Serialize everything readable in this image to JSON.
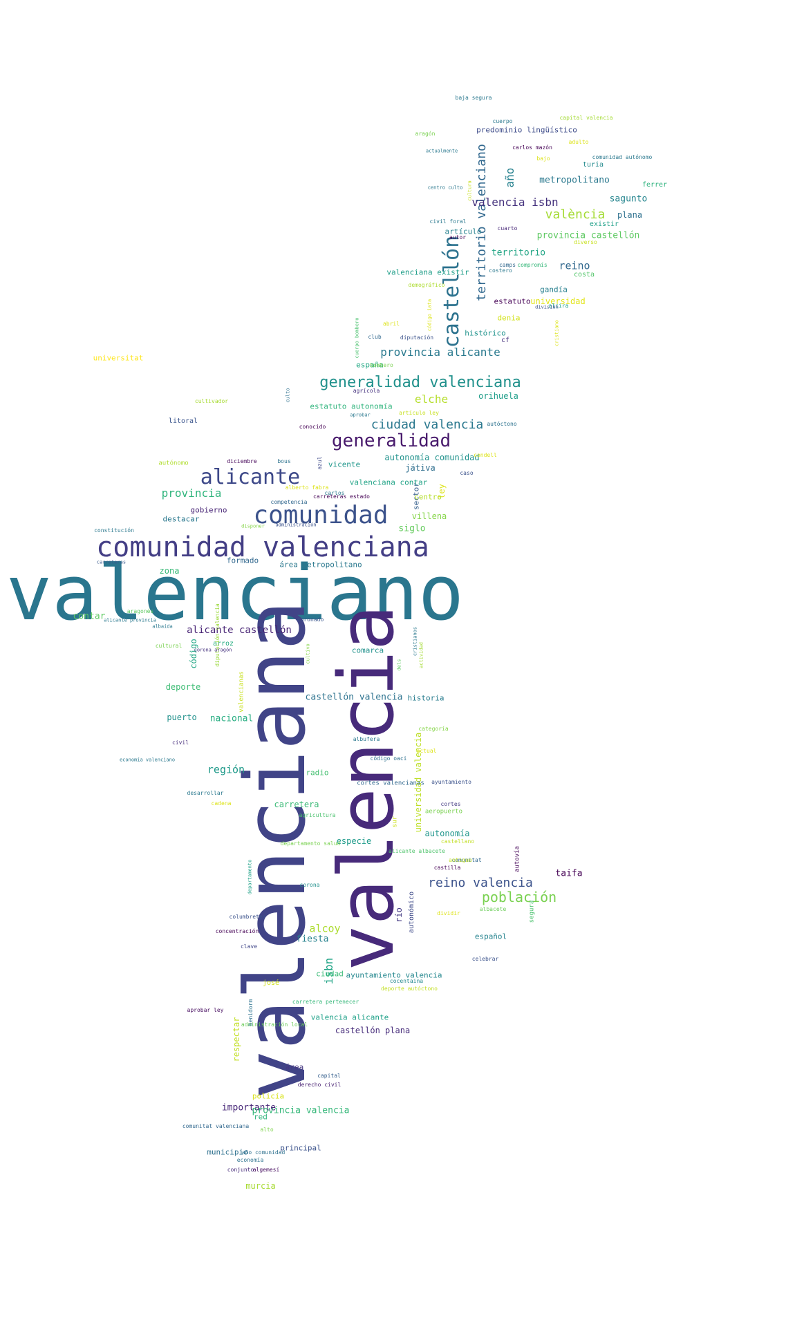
{
  "words": [
    {
      "text": "valenciano",
      "color": "#2a768e"
    },
    {
      "text": "valenciana",
      "color": "#414487"
    },
    {
      "text": "valencia",
      "color": "#472a7a"
    },
    {
      "text": "comunidad valenciana",
      "color": "#433e85"
    },
    {
      "text": "comunidad",
      "color": "#3b528b"
    },
    {
      "text": "generalidad",
      "color": "#481a6c"
    },
    {
      "text": "generalidad valenciana",
      "color": "#21918c"
    },
    {
      "text": "alicante",
      "color": "#3e4989"
    },
    {
      "text": "castellón",
      "color": "#2c728e"
    },
    {
      "text": "territorio valenciano",
      "color": "#31688e"
    },
    {
      "text": "población",
      "color": "#7ad151"
    },
    {
      "text": "reino valencia",
      "color": "#3b528b"
    },
    {
      "text": "ciudad valencia",
      "color": "#2a788e"
    },
    {
      "text": "provincia alicante",
      "color": "#29798e"
    },
    {
      "text": "valencia isbn",
      "color": "#46337e"
    },
    {
      "text": "valència",
      "color": "#a5db36"
    },
    {
      "text": "elche",
      "color": "#b5de2b"
    },
    {
      "text": "provincia",
      "color": "#2fb47c"
    },
    {
      "text": "alicante castellón",
      "color": "#482475"
    },
    {
      "text": "castellón valencia",
      "color": "#2c728e"
    },
    {
      "text": "región",
      "color": "#1f9a8a"
    },
    {
      "text": "alcoy",
      "color": "#addc30"
    },
    {
      "text": "isbn",
      "color": "#20a486"
    },
    {
      "text": "fiesta",
      "color": "#26828e"
    },
    {
      "text": "importante",
      "color": "#482878"
    },
    {
      "text": "año",
      "color": "#26818e"
    },
    {
      "text": "metropolitano",
      "color": "#2a788e"
    },
    {
      "text": "reino",
      "color": "#31688e"
    },
    {
      "text": "territorio",
      "color": "#21a585"
    },
    {
      "text": "universidad",
      "color": "#e2e418"
    },
    {
      "text": "provincia castellón",
      "color": "#5ec962"
    },
    {
      "text": "plana",
      "color": "#2d708e"
    },
    {
      "text": "sagunto",
      "color": "#25858e"
    },
    {
      "text": "orihuela",
      "color": "#1f9e89"
    },
    {
      "text": "villena",
      "color": "#86d549"
    },
    {
      "text": "siglo",
      "color": "#65cb5e"
    },
    {
      "text": "ley",
      "color": "#dde318"
    },
    {
      "text": "sector",
      "color": "#355f8d"
    },
    {
      "text": "destacar",
      "color": "#2a788e"
    },
    {
      "text": "gobierno",
      "color": "#482576"
    },
    {
      "text": "zona",
      "color": "#38b977"
    },
    {
      "text": "contar",
      "color": "#5ec962"
    },
    {
      "text": "código",
      "color": "#22a785"
    },
    {
      "text": "deporte",
      "color": "#3dbc74"
    },
    {
      "text": "puerto",
      "color": "#21918c"
    },
    {
      "text": "nacional",
      "color": "#27ad81"
    },
    {
      "text": "historia",
      "color": "#287c8e"
    },
    {
      "text": "comarca",
      "color": "#21918c"
    },
    {
      "text": "radio",
      "color": "#44bf70"
    },
    {
      "text": "carretera",
      "color": "#3aba76"
    },
    {
      "text": "especie",
      "color": "#1e9b8a"
    },
    {
      "text": "universidad valencia",
      "color": "#bddf26"
    },
    {
      "text": "autonomía",
      "color": "#1f958b"
    },
    {
      "text": "taifa",
      "color": "#440154"
    },
    {
      "text": "río",
      "color": "#443a83"
    },
    {
      "text": "autonómico",
      "color": "#3e4a89"
    },
    {
      "text": "ayuntamiento valencia",
      "color": "#24878e"
    },
    {
      "text": "valencia alicante",
      "color": "#1fa188"
    },
    {
      "text": "castellón plana",
      "color": "#472d7b"
    },
    {
      "text": "ciudad",
      "color": "#3aba76"
    },
    {
      "text": "respectar",
      "color": "#c2df23"
    },
    {
      "text": "área",
      "color": "#453781"
    },
    {
      "text": "policía",
      "color": "#d8e219"
    },
    {
      "text": "provincia valencia",
      "color": "#35b779"
    },
    {
      "text": "red",
      "color": "#2eb37c"
    },
    {
      "text": "principal",
      "color": "#3b528b"
    },
    {
      "text": "municipio",
      "color": "#2d708e"
    },
    {
      "text": "murcia",
      "color": "#a8db34"
    },
    {
      "text": "español",
      "color": "#25838e"
    },
    {
      "text": "españa",
      "color": "#22a884"
    },
    {
      "text": "estatuto autonomía",
      "color": "#2fb47c"
    },
    {
      "text": "predominio lingüístico",
      "color": "#3e4c8a"
    },
    {
      "text": "autonomía comunidad",
      "color": "#20928c"
    },
    {
      "text": "jativa_display",
      "color": "#2e6e8e"
    },
    {
      "text": "valenciana contar",
      "color": "#20a386"
    },
    {
      "text": "centro",
      "color": "#b5de2b"
    },
    {
      "text": "vicente",
      "color": "#1f968b"
    },
    {
      "text": "formado",
      "color": "#31688e"
    },
    {
      "text": "área metropolitano",
      "color": "#2a788e"
    },
    {
      "text": "denia",
      "color": "#d2e21b"
    },
    {
      "text": "gandía",
      "color": "#277f8e"
    },
    {
      "text": "estatuto",
      "color": "#440154"
    },
    {
      "text": "cf",
      "color": "#46327e"
    },
    {
      "text": "histórico",
      "color": "#20938c"
    },
    {
      "text": "valenciana existir",
      "color": "#1f9e89"
    },
    {
      "text": "costa",
      "color": "#52c569"
    },
    {
      "text": "artículo",
      "color": "#26818e"
    },
    {
      "text": "turia",
      "color": "#238a8d"
    },
    {
      "text": "ferrer",
      "color": "#2db27d"
    },
    {
      "text": "existir",
      "color": "#1fa088"
    },
    {
      "text": "universitat",
      "color": "#fde725"
    },
    {
      "text": "litoral",
      "color": "#3a548c"
    },
    {
      "text": "autónomo",
      "color": "#b0dd2f"
    },
    {
      "text": "autovía",
      "color": "#450559"
    },
    {
      "text": "segura",
      "color": "#4ac16d"
    },
    {
      "text": "arroz",
      "color": "#27ad81"
    },
    {
      "text": "josé",
      "color": "#d0e11c"
    },
    {
      "text": "sur",
      "color": "#cde11d"
    },
    {
      "text": "valencianas",
      "color": "#c8e020"
    },
    {
      "text": "diputación valencia",
      "color": "#9bd93c"
    },
    {
      "text": "aeropuerto",
      "color": "#7ad151"
    },
    {
      "text": "cortes valencianas",
      "color": "#31688e"
    },
    {
      "text": "código oaci",
      "color": "#2d708e"
    },
    {
      "text": "castellano",
      "color": "#c2df23"
    },
    {
      "text": "alicante albacete",
      "color": "#4ec36b"
    },
    {
      "text": "comunitat",
      "color": "#31688e"
    },
    {
      "text": "dividir",
      "color": "#dde318"
    },
    {
      "text": "albacete",
      "color": "#6ccd5a"
    },
    {
      "text": "celebrar",
      "color": "#3b528b"
    },
    {
      "text": "cocentaina",
      "color": "#23898e"
    },
    {
      "text": "deporte autóctono",
      "color": "#c2df23"
    },
    {
      "text": "carretera pertenecer",
      "color": "#35b779"
    },
    {
      "text": "administración local",
      "color": "#6ccd5a"
    },
    {
      "text": "benidorm",
      "color": "#2c728e"
    },
    {
      "text": "aprobar ley",
      "color": "#470d60"
    },
    {
      "text": "capital",
      "color": "#355f8d"
    },
    {
      "text": "derecho civil",
      "color": "#482173"
    },
    {
      "text": "comunitat valenciana",
      "color": "#31688e"
    },
    {
      "text": "alto",
      "color": "#7fd34e"
    },
    {
      "text": "año comunidad",
      "color": "#2d708e"
    },
    {
      "text": "economía",
      "color": "#2c728e"
    },
    {
      "text": "conjunto",
      "color": "#472c7a"
    },
    {
      "text": "algemesí",
      "color": "#470d60"
    },
    {
      "text": "clave",
      "color": "#404688"
    },
    {
      "text": "concentración",
      "color": "#440154"
    },
    {
      "text": "columbretes",
      "color": "#3b528b"
    },
    {
      "text": "corona",
      "color": "#21918c"
    },
    {
      "text": "departamento",
      "color": "#1fa188"
    },
    {
      "text": "departamento salud",
      "color": "#7ad151"
    },
    {
      "text": "agricultura",
      "color": "#4ac16d"
    },
    {
      "text": "cadena",
      "color": "#dde318"
    },
    {
      "text": "desarrollar",
      "color": "#2a788e"
    },
    {
      "text": "cortes",
      "color": "#443a83"
    },
    {
      "text": "ayuntamiento",
      "color": "#3b528b"
    },
    {
      "text": "actual",
      "color": "#dde318"
    },
    {
      "text": "categoría",
      "color": "#86d549"
    },
    {
      "text": "albufera",
      "color": "#2a788e"
    },
    {
      "text": "civil",
      "color": "#472f7d"
    },
    {
      "text": "economía valenciano",
      "color": "#2a788e"
    },
    {
      "text": "dels",
      "color": "#5ec962"
    },
    {
      "text": "cristianos",
      "color": "#2a788e"
    },
    {
      "text": "actividad",
      "color": "#a5db36"
    },
    {
      "text": "cultivo",
      "color": "#86d549"
    },
    {
      "text": "coronado",
      "color": "#39558c"
    },
    {
      "text": "corona aragón",
      "color": "#46327e"
    },
    {
      "text": "cultural",
      "color": "#7ad151"
    },
    {
      "text": "albaida",
      "color": "#2a788e"
    },
    {
      "text": "aragonés",
      "color": "#5ec962"
    },
    {
      "text": "alicante provincia",
      "color": "#2a788e"
    },
    {
      "text": "carreteras",
      "color": "#38588c"
    },
    {
      "text": "constitución",
      "color": "#2a788e"
    },
    {
      "text": "disponer",
      "color": "#86d549"
    },
    {
      "text": "administración",
      "color": "#3b528b"
    },
    {
      "text": "competencia",
      "color": "#31688e"
    },
    {
      "text": "carreteras estado",
      "color": "#440154"
    },
    {
      "text": "alberto fabra",
      "color": "#dde318"
    },
    {
      "text": "carlos",
      "color": "#2a788e"
    },
    {
      "text": "caso",
      "color": "#3b528b"
    },
    {
      "text": "condell",
      "color": "#dde318"
    },
    {
      "text": "azul",
      "color": "#3e4989"
    },
    {
      "text": "bous",
      "color": "#2c728e"
    },
    {
      "text": "diciembre",
      "color": "#450559"
    },
    {
      "text": "conocido",
      "color": "#440154"
    },
    {
      "text": "aprobar",
      "color": "#2a788e"
    },
    {
      "text": "artículo ley",
      "color": "#c8e020"
    },
    {
      "text": "culto",
      "color": "#2d708e"
    },
    {
      "text": "cultivador",
      "color": "#a8db34"
    },
    {
      "text": "agrícola",
      "color": "#46327e"
    },
    {
      "text": "bombero",
      "color": "#7ad151"
    },
    {
      "text": "autóctono",
      "color": "#2c728e"
    },
    {
      "text": "cuerpo bombero",
      "color": "#4ac16d"
    },
    {
      "text": "club",
      "color": "#31688e"
    },
    {
      "text": "diputación",
      "color": "#3b528b"
    },
    {
      "text": "abril",
      "color": "#dde318"
    },
    {
      "text": "código iata",
      "color": "#dde318"
    },
    {
      "text": "alcira",
      "color": "#1fa188"
    },
    {
      "text": "cristiano",
      "color": "#dde318"
    },
    {
      "text": "división",
      "color": "#3b528b"
    },
    {
      "text": "demográfico",
      "color": "#addc30"
    },
    {
      "text": "costero",
      "color": "#2a788e"
    },
    {
      "text": "camps",
      "color": "#31688e"
    },
    {
      "text": "compromís",
      "color": "#35b779"
    },
    {
      "text": "autor",
      "color": "#440154"
    },
    {
      "text": "cuarto",
      "color": "#482878"
    },
    {
      "text": "civil foral",
      "color": "#2a788e"
    },
    {
      "text": "centro culto",
      "color": "#2a788e"
    },
    {
      "text": "cultura",
      "color": "#c8e020"
    },
    {
      "text": "diverso",
      "color": "#c8e020"
    },
    {
      "text": "actualmente",
      "color": "#2a788e"
    },
    {
      "text": "bajo",
      "color": "#dde318"
    },
    {
      "text": "comunidad autónomo",
      "color": "#2a788e"
    },
    {
      "text": "carlos mazón",
      "color": "#440154"
    },
    {
      "text": "adulto",
      "color": "#dde318"
    },
    {
      "text": "aragón",
      "color": "#7ad151"
    },
    {
      "text": "cuerpo",
      "color": "#2a788e"
    },
    {
      "text": "capital valencia",
      "color": "#a5db36"
    },
    {
      "text": "baja segura",
      "color": "#2a788e"
    },
    {
      "text": "castilla",
      "color": "#440154"
    },
    {
      "text": "antiguo",
      "color": "#c2df23"
    },
    {
      "text": "cupo",
      "color": "#dde318"
    }
  ]
}
